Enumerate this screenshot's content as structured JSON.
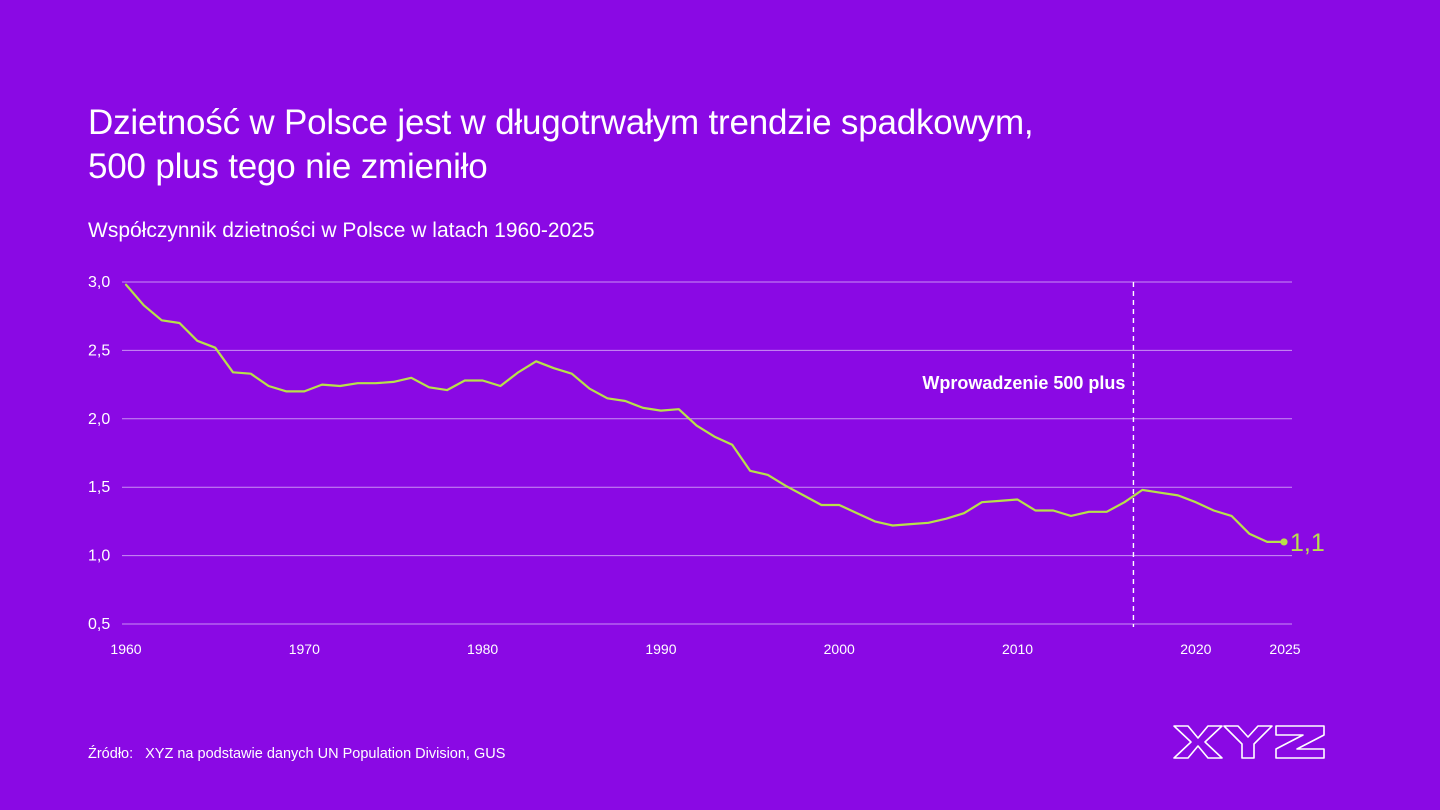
{
  "colors": {
    "background": "#8a09e4",
    "line": "#b8e04a",
    "text": "#ffffff",
    "grid": "#ffffff"
  },
  "title_line1": "Dzietność w Polsce jest w długotrwałym trendzie spadkowym,",
  "title_line2": "500 plus tego nie zmieniło",
  "subtitle": "Współczynnik dzietności w Polsce w latach 1960-2025",
  "source_label": "Źródło:",
  "source_text": "XYZ na podstawie danych UN Population Division, GUS",
  "logo_icon": "xyz-logo-icon",
  "logo_text": "XYZ",
  "chart_data": {
    "type": "line",
    "title": "Dzietność w Polsce jest w długotrwałym trendzie spadkowym, 500 plus tego nie zmieniło",
    "subtitle": "Współczynnik dzietności w Polsce w latach 1960-2025",
    "xlabel": "",
    "ylabel": "",
    "xlim": [
      1960,
      2025
    ],
    "ylim": [
      0.5,
      3.0
    ],
    "grid": true,
    "yticks": [
      0.5,
      1.0,
      1.5,
      2.0,
      2.5,
      3.0
    ],
    "ytick_labels": [
      "0,5",
      "1,0",
      "1,5",
      "2,0",
      "2,5",
      "3,0"
    ],
    "xticks": [
      1960,
      1970,
      1980,
      1990,
      2000,
      2010,
      2020,
      2025
    ],
    "xtick_labels": [
      "1960",
      "1970",
      "1980",
      "1990",
      "2000",
      "2010",
      "2020",
      "2025"
    ],
    "series": [
      {
        "name": "Współczynnik dzietności",
        "x": [
          1960,
          1961,
          1962,
          1963,
          1964,
          1965,
          1966,
          1967,
          1968,
          1969,
          1970,
          1971,
          1972,
          1973,
          1974,
          1975,
          1976,
          1977,
          1978,
          1979,
          1980,
          1981,
          1982,
          1983,
          1984,
          1985,
          1986,
          1987,
          1988,
          1989,
          1990,
          1991,
          1992,
          1993,
          1994,
          1995,
          1996,
          1997,
          1998,
          1999,
          2000,
          2001,
          2002,
          2003,
          2004,
          2005,
          2006,
          2007,
          2008,
          2009,
          2010,
          2011,
          2012,
          2013,
          2014,
          2015,
          2016,
          2017,
          2018,
          2019,
          2020,
          2021,
          2022,
          2023,
          2024,
          2025
        ],
        "values": [
          2.98,
          2.83,
          2.72,
          2.7,
          2.57,
          2.52,
          2.34,
          2.33,
          2.24,
          2.2,
          2.2,
          2.25,
          2.24,
          2.26,
          2.26,
          2.27,
          2.3,
          2.23,
          2.21,
          2.28,
          2.28,
          2.24,
          2.34,
          2.42,
          2.37,
          2.33,
          2.22,
          2.15,
          2.13,
          2.08,
          2.06,
          2.07,
          1.95,
          1.87,
          1.81,
          1.62,
          1.59,
          1.51,
          1.44,
          1.37,
          1.37,
          1.31,
          1.25,
          1.22,
          1.23,
          1.24,
          1.27,
          1.31,
          1.39,
          1.4,
          1.41,
          1.33,
          1.33,
          1.29,
          1.32,
          1.32,
          1.39,
          1.48,
          1.46,
          1.44,
          1.39,
          1.33,
          1.29,
          1.16,
          1.1,
          1.1
        ]
      }
    ],
    "annotations": [
      {
        "type": "vline",
        "x": 2016.5,
        "label": "Wprowadzenie 500 plus"
      },
      {
        "type": "end-label",
        "x": 2025,
        "y": 1.1,
        "label": "1,1"
      }
    ]
  }
}
